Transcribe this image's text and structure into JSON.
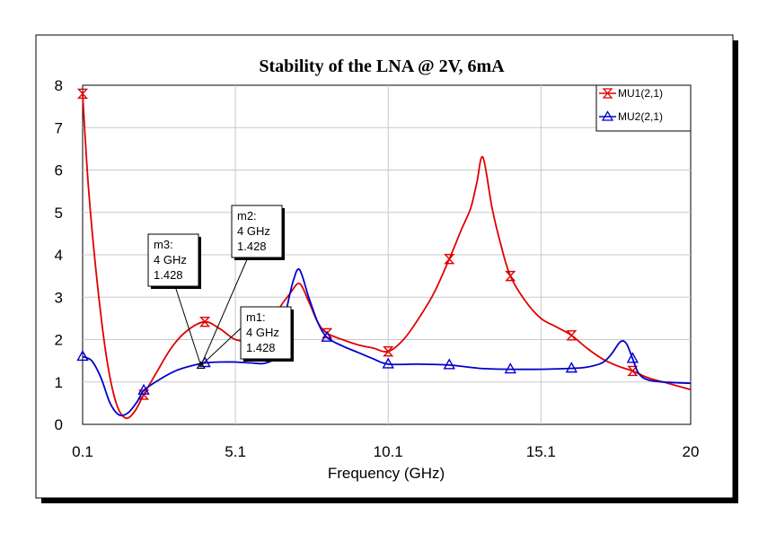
{
  "chart_data": {
    "type": "line",
    "title": "Stability of the LNA @ 2V, 6mA",
    "xlabel": "Frequency (GHz)",
    "ylabel": "",
    "xlim": [
      0.1,
      20
    ],
    "ylim": [
      0,
      8
    ],
    "x_ticks": [
      0.1,
      5.1,
      10.1,
      15.1,
      20
    ],
    "x_tick_labels": [
      "0.1",
      "5.1",
      "10.1",
      "15.1",
      "20"
    ],
    "y_ticks": [
      0,
      1,
      2,
      3,
      4,
      5,
      6,
      7,
      8
    ],
    "y_tick_labels": [
      "0",
      "1",
      "2",
      "3",
      "4",
      "5",
      "6",
      "7",
      "8"
    ],
    "legend_position": "top-right",
    "series": [
      {
        "name": "MU1(2,1)",
        "color": "#e00000",
        "marker": "hourglass",
        "x": [
          0.1,
          0.3,
          0.6,
          0.9,
          1.2,
          1.5,
          1.8,
          2.1,
          2.5,
          3.0,
          3.5,
          4.1,
          4.6,
          5.1,
          5.6,
          6.1,
          6.5,
          6.9,
          7.2,
          7.5,
          7.8,
          8.1,
          8.6,
          9.1,
          9.6,
          10.1,
          10.6,
          11.1,
          11.6,
          12.1,
          12.5,
          12.8,
          13.0,
          13.2,
          13.5,
          13.8,
          14.1,
          14.6,
          15.1,
          15.6,
          16.1,
          16.6,
          17.1,
          17.6,
          18.1,
          18.6,
          19.1,
          19.6,
          20.0
        ],
        "values": [
          7.8,
          5.5,
          3.2,
          1.5,
          0.5,
          0.15,
          0.3,
          0.7,
          1.2,
          1.8,
          2.2,
          2.42,
          2.25,
          2.0,
          2.0,
          2.2,
          2.7,
          3.1,
          3.32,
          2.9,
          2.4,
          2.15,
          2.0,
          1.88,
          1.8,
          1.72,
          2.0,
          2.5,
          3.1,
          3.9,
          4.6,
          5.1,
          5.7,
          6.3,
          5.1,
          4.2,
          3.5,
          2.9,
          2.5,
          2.3,
          2.1,
          1.8,
          1.55,
          1.38,
          1.26,
          1.1,
          1.0,
          0.9,
          0.82
        ],
        "marker_x": [
          0.1,
          2.1,
          4.1,
          8.1,
          10.1,
          12.1,
          14.1,
          16.1,
          18.1
        ]
      },
      {
        "name": "MU2(2,1)",
        "color": "#0000cc",
        "marker": "triangle",
        "x": [
          0.1,
          0.4,
          0.7,
          1.0,
          1.3,
          1.6,
          1.9,
          2.1,
          2.6,
          3.1,
          3.6,
          4.1,
          4.6,
          5.1,
          5.6,
          6.1,
          6.5,
          6.8,
          7.0,
          7.2,
          7.5,
          7.8,
          8.1,
          8.6,
          9.1,
          9.6,
          10.1,
          11.1,
          12.1,
          13.1,
          14.1,
          15.1,
          16.1,
          16.6,
          17.1,
          17.4,
          17.7,
          17.9,
          18.1,
          18.3,
          18.6,
          19.1,
          19.6,
          20.0
        ],
        "values": [
          1.6,
          1.5,
          1.1,
          0.5,
          0.22,
          0.28,
          0.55,
          0.8,
          1.05,
          1.25,
          1.37,
          1.45,
          1.47,
          1.47,
          1.45,
          1.45,
          1.7,
          2.8,
          3.4,
          3.65,
          3.0,
          2.4,
          2.05,
          1.85,
          1.7,
          1.55,
          1.42,
          1.42,
          1.4,
          1.32,
          1.3,
          1.3,
          1.32,
          1.35,
          1.45,
          1.65,
          1.95,
          1.9,
          1.55,
          1.2,
          1.05,
          1.0,
          0.98,
          0.97
        ],
        "marker_x": [
          0.1,
          2.1,
          4.1,
          8.1,
          10.1,
          12.1,
          14.1,
          16.1,
          18.1
        ]
      }
    ],
    "markers": [
      {
        "name": "m1:",
        "freq_text": "4 GHz",
        "value_text": "1.428",
        "x": 4.0,
        "y": 1.428
      },
      {
        "name": "m2:",
        "freq_text": "4 GHz",
        "value_text": "1.428",
        "x": 4.0,
        "y": 1.428
      },
      {
        "name": "m3:",
        "freq_text": "4 GHz",
        "value_text": "1.428",
        "x": 4.0,
        "y": 1.428
      }
    ]
  }
}
